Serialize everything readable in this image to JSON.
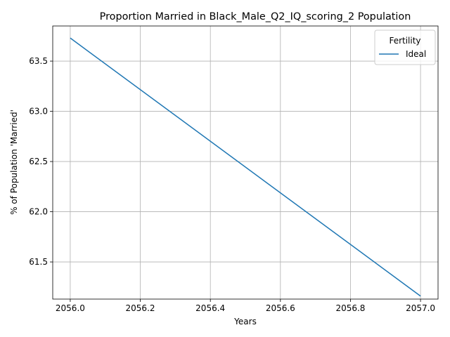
{
  "chart_data": {
    "type": "line",
    "title": "Proportion Married in Black_Male_Q2_IQ_scoring_2 Population",
    "xlabel": "Years",
    "ylabel": "% of Population 'Married'",
    "xlim": [
      2055.95,
      2057.05
    ],
    "ylim": [
      61.13,
      63.85
    ],
    "xticks": [
      {
        "value": 2056.0,
        "label": "2056.0"
      },
      {
        "value": 2056.2,
        "label": "2056.2"
      },
      {
        "value": 2056.4,
        "label": "2056.4"
      },
      {
        "value": 2056.6,
        "label": "2056.6"
      },
      {
        "value": 2056.8,
        "label": "2056.8"
      },
      {
        "value": 2057.0,
        "label": "2057.0"
      }
    ],
    "yticks": [
      {
        "value": 61.5,
        "label": "61.5"
      },
      {
        "value": 62.0,
        "label": "62.0"
      },
      {
        "value": 62.5,
        "label": "62.5"
      },
      {
        "value": 63.0,
        "label": "63.0"
      },
      {
        "value": 63.5,
        "label": "63.5"
      }
    ],
    "grid": true,
    "legend": {
      "title": "Fertility",
      "placement": "top-right"
    },
    "series": [
      {
        "name": "Ideal",
        "color": "#1f77b4",
        "x": [
          2056.0,
          2057.0
        ],
        "y": [
          63.73,
          61.16
        ]
      }
    ]
  }
}
